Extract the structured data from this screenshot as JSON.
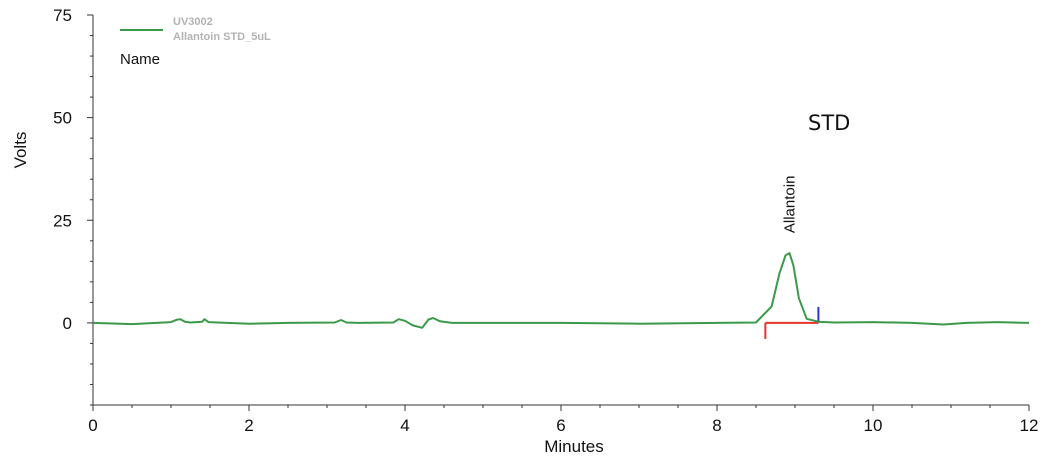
{
  "chart_data": {
    "type": "line",
    "xlabel": "Minutes",
    "ylabel": "Volts",
    "xlim": [
      0,
      12
    ],
    "ylim": [
      -20,
      75
    ],
    "x_ticks": [
      0,
      2,
      4,
      6,
      8,
      10,
      12
    ],
    "y_ticks": [
      0,
      25,
      50,
      75
    ],
    "grid": false,
    "legend": {
      "placement": "top-left",
      "entries": [
        "UV3002",
        "Allantoin STD_5uL"
      ],
      "name_label": "Name"
    },
    "annotation": "STD",
    "series": [
      {
        "color": "#3a9a4a",
        "x": [
          0,
          0.5,
          1.0,
          1.08,
          1.12,
          1.18,
          1.25,
          1.4,
          1.43,
          1.48,
          1.6,
          2.0,
          2.5,
          3.1,
          3.18,
          3.25,
          3.4,
          3.85,
          3.92,
          4.0,
          4.1,
          4.22,
          4.3,
          4.36,
          4.45,
          4.6,
          5.0,
          6.0,
          7.0,
          8.0,
          8.5,
          8.7,
          8.8,
          8.88,
          8.93,
          8.98,
          9.05,
          9.15,
          9.3,
          9.5,
          10.0,
          10.5,
          10.9,
          11.2,
          11.6,
          12.0
        ],
        "y": [
          0,
          -0.3,
          0.2,
          0.8,
          0.9,
          0.3,
          0.1,
          0.3,
          0.9,
          0.2,
          0.1,
          -0.2,
          0,
          0.1,
          0.7,
          0.1,
          0,
          0.1,
          0.9,
          0.5,
          -0.6,
          -1.2,
          0.8,
          1.2,
          0.4,
          0,
          0,
          0,
          -0.2,
          0,
          0.1,
          4,
          12,
          16.5,
          17,
          14,
          6,
          1,
          0.3,
          0.1,
          0.2,
          0,
          -0.4,
          0,
          0.2,
          0
        ]
      }
    ],
    "peak": {
      "label": "Allantoin",
      "x": 8.93,
      "y": 17,
      "baseline_start_x": 8.62,
      "baseline_end_x": 9.3,
      "start_marker_color": "#e8322a",
      "end_marker_color": "#2a36c8",
      "baseline_color": "#e8322a"
    }
  }
}
